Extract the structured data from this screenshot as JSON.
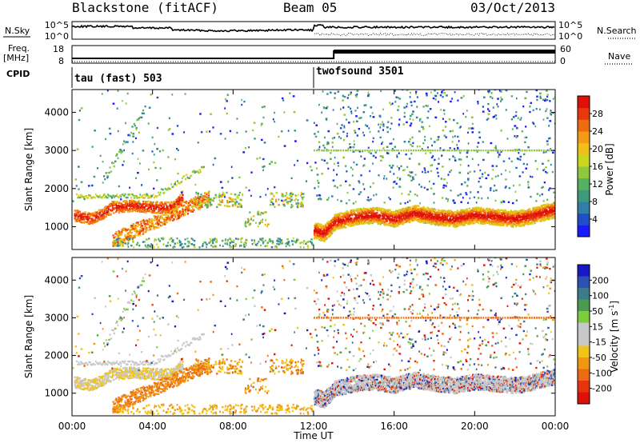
{
  "header": {
    "station": "Blackstone (fitACF)",
    "beam": "Beam 05",
    "date": "03/Oct/2013"
  },
  "side_labels": {
    "nsky": "N.Sky",
    "nsearch": "N.Search",
    "freq": "Freq.",
    "freq_unit": "[MHz]",
    "nave": "Nave",
    "cpid": "CPID"
  },
  "small_axes": {
    "noise_ticks_left": [
      "10^5",
      "10^0"
    ],
    "noise_ticks_right": [
      "10^5",
      "10^0"
    ],
    "freq_ticks": [
      "18",
      "8"
    ],
    "nave_ticks": [
      "60",
      "0"
    ]
  },
  "cpid_segments": [
    {
      "label": "tau (fast) 503",
      "start_hour": 0
    },
    {
      "label": "twofsound 3501",
      "start_hour": 12
    }
  ],
  "chart_data": [
    {
      "type": "heatmap",
      "panel": "power",
      "ylabel": "Slant Range [km]",
      "y_ticks": [
        "1000",
        "2000",
        "3000",
        "4000"
      ],
      "ylim": [
        400,
        4600
      ],
      "xlim_hours": [
        0,
        24
      ],
      "colorbar": {
        "label": "Power [dB]",
        "ticks": [
          "4",
          "8",
          "12",
          "16",
          "20",
          "24",
          "28"
        ],
        "colors": [
          "#1a1aff",
          "#1f4fc8",
          "#2f7fa8",
          "#3d9a7a",
          "#55b060",
          "#8fc83c",
          "#c9d81e",
          "#f0c018",
          "#f49a14",
          "#f06a10",
          "#e8380c",
          "#e01008"
        ]
      },
      "bands": [
        {
          "name": "main",
          "points": [
            [
              12.0,
              900
            ],
            [
              12.5,
              820
            ],
            [
              13,
              1100
            ],
            [
              14,
              1250
            ],
            [
              15,
              1300
            ],
            [
              16,
              1200
            ],
            [
              17,
              1350
            ],
            [
              18,
              1250
            ],
            [
              19,
              1200
            ],
            [
              20,
              1300
            ],
            [
              21,
              1250
            ],
            [
              22,
              1200
            ],
            [
              23,
              1300
            ],
            [
              24,
              1450
            ]
          ]
        },
        {
          "name": "early",
          "points": [
            [
              0,
              1300
            ],
            [
              1,
              1200
            ],
            [
              2,
              1500
            ],
            [
              3,
              1550
            ],
            [
              4,
              1500
            ],
            [
              5,
              1500
            ],
            [
              5.5,
              1800
            ]
          ]
        }
      ]
    },
    {
      "type": "heatmap",
      "panel": "velocity",
      "ylabel": "Slant Range [km]",
      "y_ticks": [
        "1000",
        "2000",
        "3000",
        "4000"
      ],
      "ylim": [
        400,
        4600
      ],
      "xlim_hours": [
        0,
        24
      ],
      "x_ticks": [
        "00:00",
        "04:00",
        "08:00",
        "12:00",
        "16:00",
        "20:00",
        "00:00"
      ],
      "xlabel": "Time UT",
      "colorbar": {
        "label": "Velocity [m s",
        "label_sup": "-1",
        "label_end": "]",
        "ticks": [
          "200",
          "100",
          "50",
          "15",
          "-15",
          "-50",
          "-100",
          "-200"
        ],
        "colors": [
          "#1818c8",
          "#2c50b4",
          "#3c7a8c",
          "#4a9a50",
          "#7ccc3c",
          "#c8c8c8",
          "#c8c8c8",
          "#f2c418",
          "#f09814",
          "#ee6a10",
          "#e8340c",
          "#e01008"
        ]
      }
    }
  ]
}
